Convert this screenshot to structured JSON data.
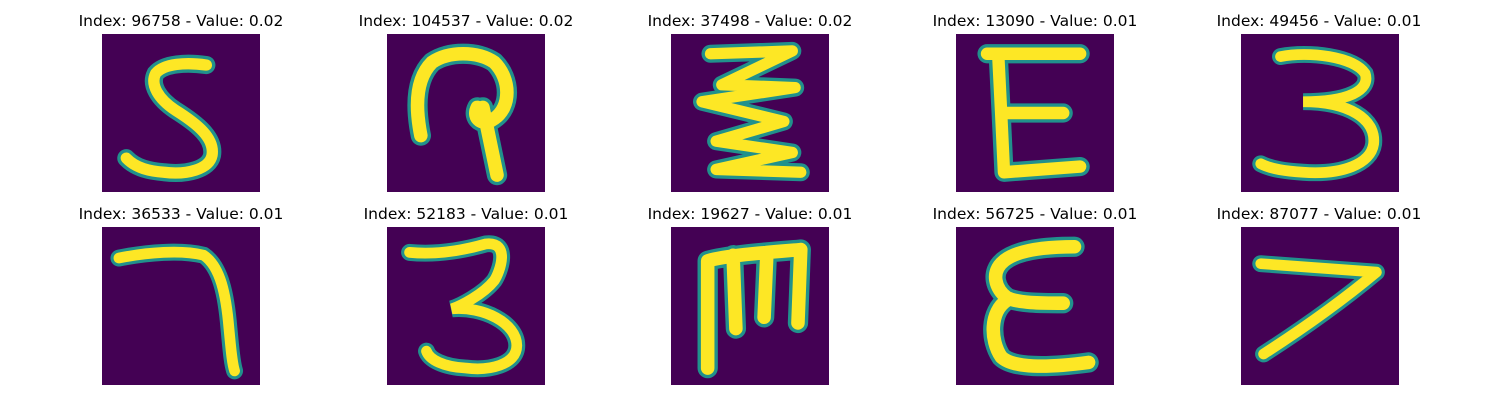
{
  "figure": {
    "colors": {
      "background": "#440154",
      "mid": "#21918c",
      "stroke": "#fde725"
    },
    "panels": [
      {
        "title": "Index: 96758 - Value: 0.02",
        "glyph": "5"
      },
      {
        "title": "Index: 104537 - Value: 0.02",
        "glyph": "loop-stem"
      },
      {
        "title": "Index: 37498 - Value: 0.02",
        "glyph": "zigzag"
      },
      {
        "title": "Index: 13090 - Value: 0.01",
        "glyph": "E"
      },
      {
        "title": "Index: 49456 - Value: 0.01",
        "glyph": "3"
      },
      {
        "title": "Index: 36533 - Value: 0.01",
        "glyph": "7-hook"
      },
      {
        "title": "Index: 52183 - Value: 0.01",
        "glyph": "3"
      },
      {
        "title": "Index: 19627 - Value: 0.01",
        "glyph": "m-shape"
      },
      {
        "title": "Index: 56725 - Value: 0.01",
        "glyph": "E-round"
      },
      {
        "title": "Index: 87077 - Value: 0.01",
        "glyph": "7-slant"
      }
    ]
  }
}
